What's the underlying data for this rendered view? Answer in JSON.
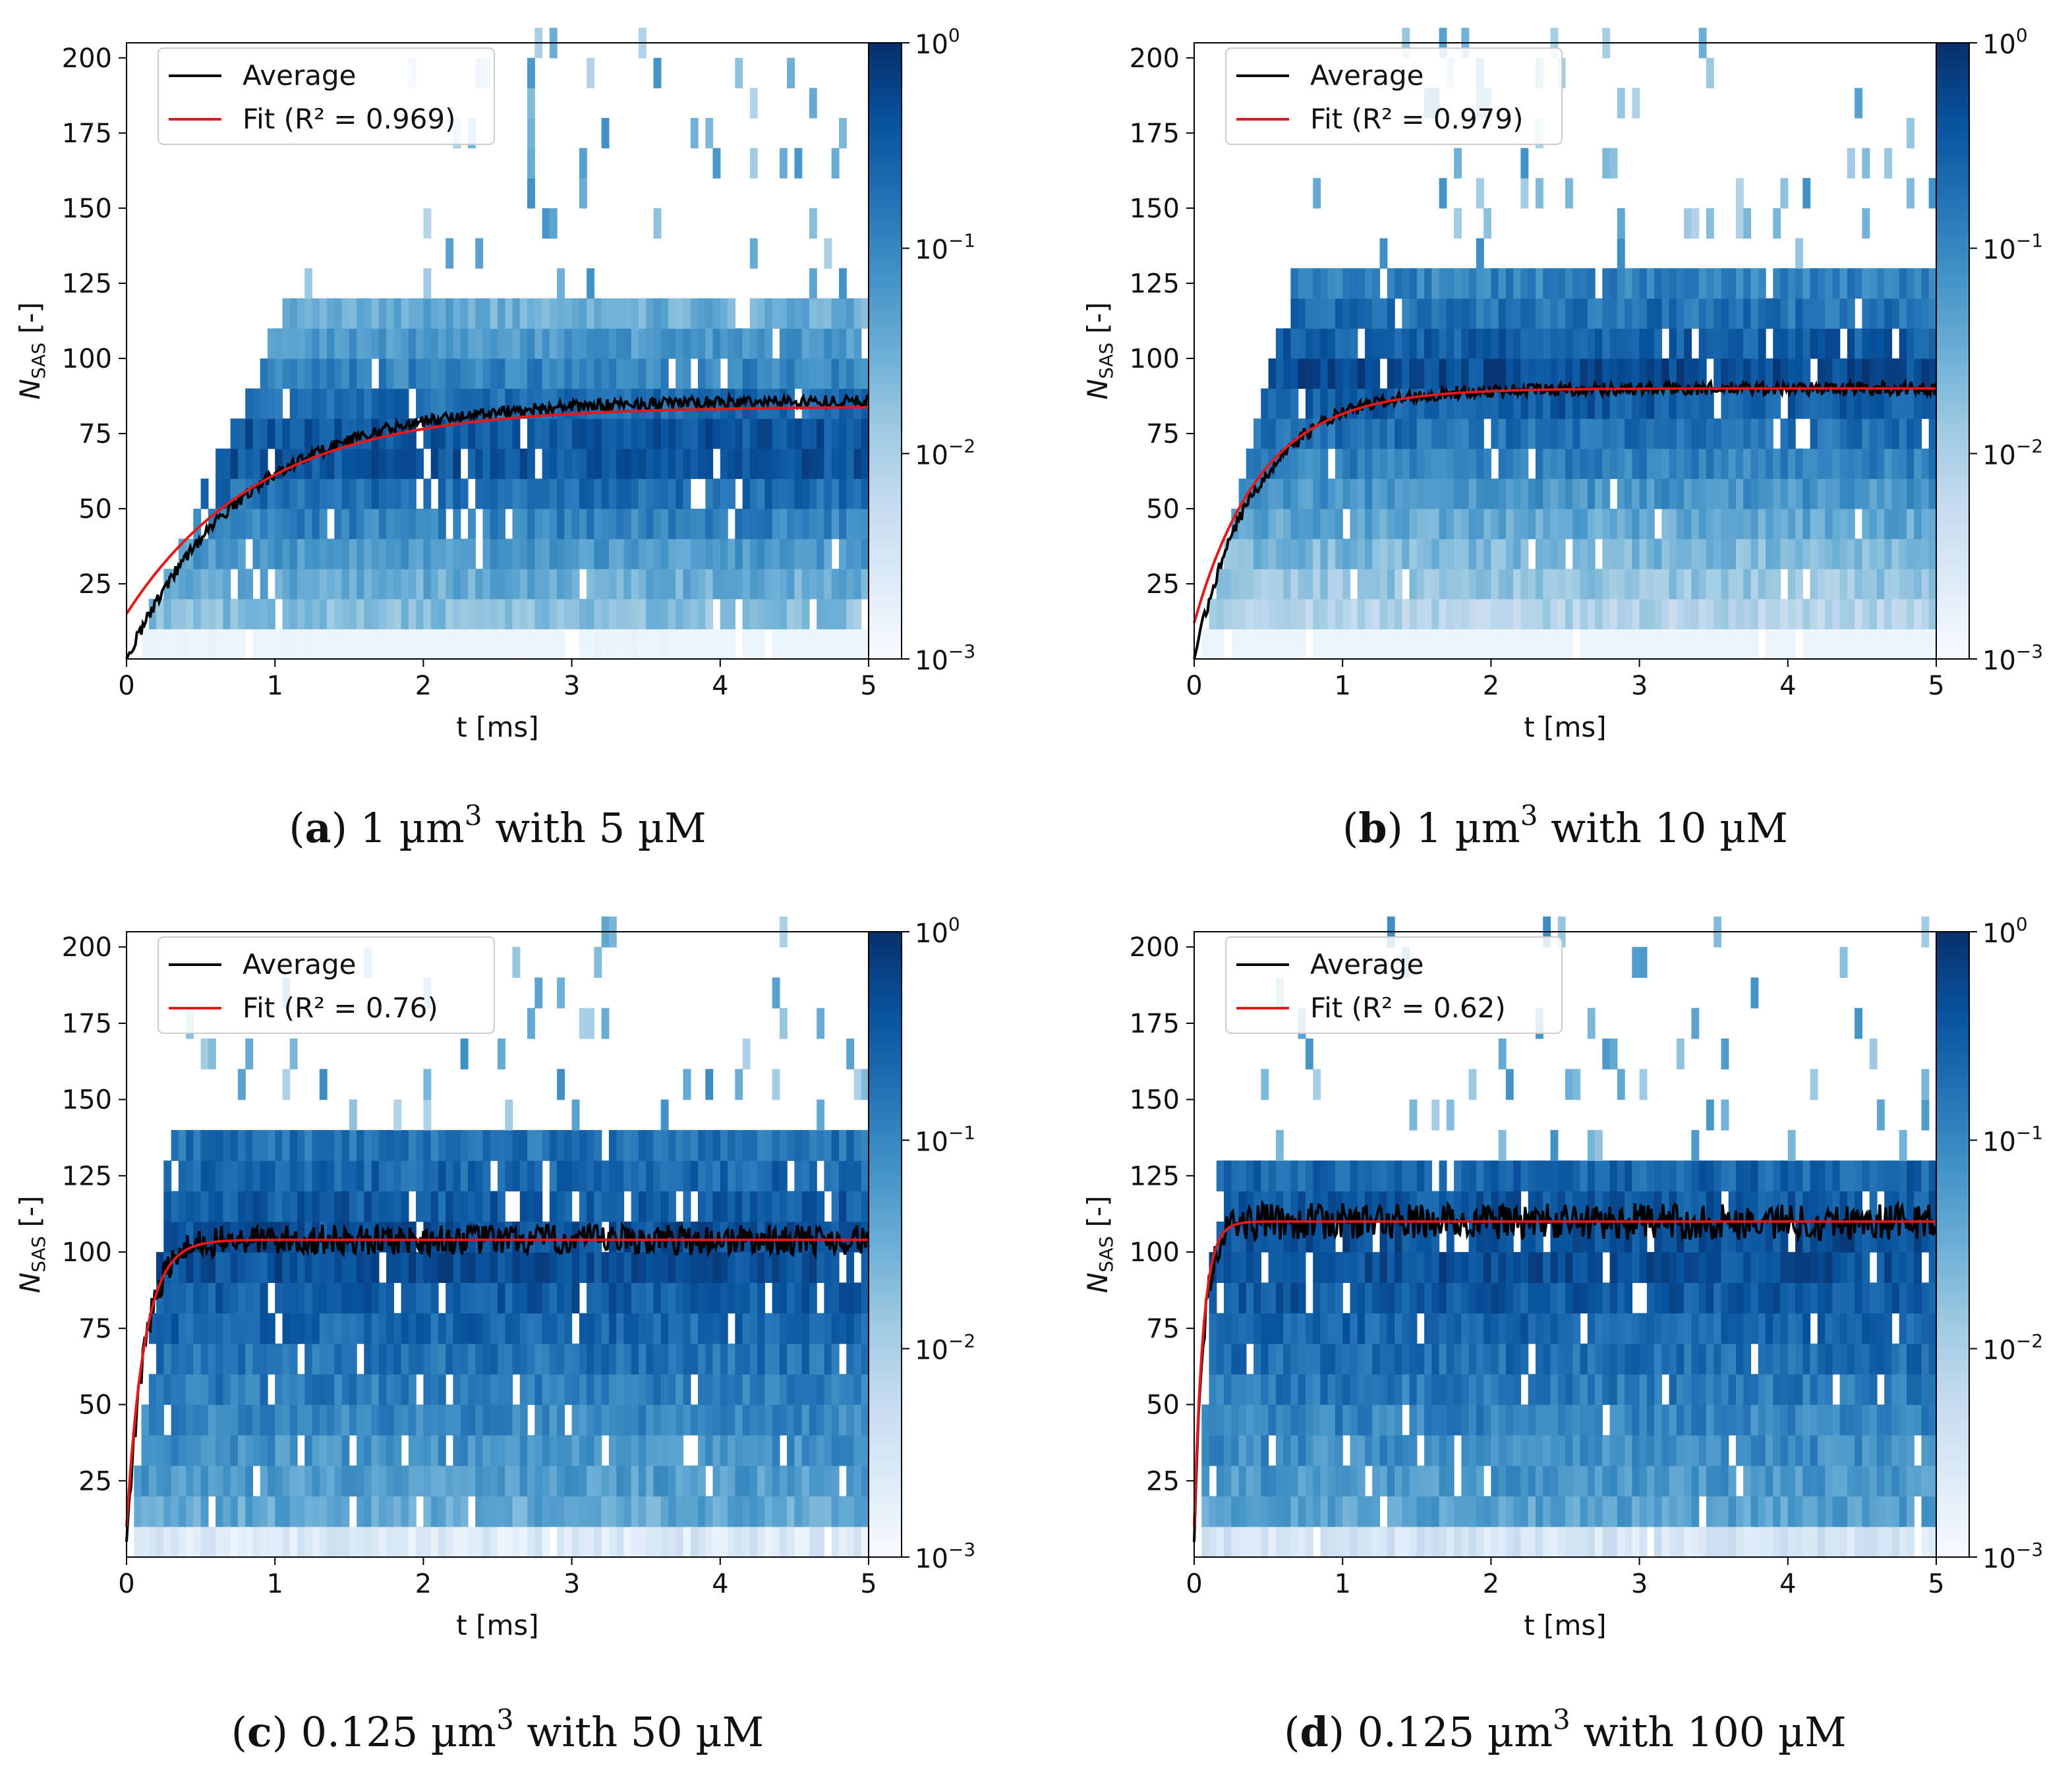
{
  "colors": {
    "average": "#000000",
    "fit": "#e31a1c",
    "cmap_low": "#f7fbff",
    "cmap_high": "#08306b"
  },
  "colorbar": {
    "ticks": [
      {
        "base": "10",
        "exp": "0",
        "value": 1
      },
      {
        "base": "10",
        "exp": "−1",
        "value": 0.1
      },
      {
        "base": "10",
        "exp": "−2",
        "value": 0.01
      },
      {
        "base": "10",
        "exp": "−3",
        "value": 0.001
      }
    ],
    "scale": "log",
    "range": [
      0.001,
      1
    ]
  },
  "chart_data": [
    {
      "type": "heatmap",
      "caption": {
        "letter": "a",
        "text": "1 µm",
        "sup": "3",
        "rest": " with 5 µM"
      },
      "xlabel": "t [ms]",
      "ylabel": {
        "main": "N",
        "sub": "SAS",
        "tail": " [-]"
      },
      "xlim": [
        0,
        5
      ],
      "ylim": [
        0,
        205
      ],
      "xticks": [
        "0",
        "1",
        "2",
        "3",
        "4",
        "5"
      ],
      "yticks": [
        "25",
        "50",
        "75",
        "100",
        "125",
        "150",
        "175",
        "200"
      ],
      "legend": {
        "position": "top-left",
        "entries": [
          "Average",
          "Fit (R² = 0.969)"
        ]
      },
      "fit": {
        "plateau": 84,
        "start": 15,
        "tau": 0.9
      },
      "average": {
        "plateau": 86,
        "start": 0,
        "tau": 0.8,
        "noise": 2
      },
      "heatmap": {
        "band_low": 5,
        "band_high": 115,
        "peak": 70,
        "spread": 0.6,
        "sparse_until": 205,
        "onset_step": 0.09
      }
    },
    {
      "type": "heatmap",
      "caption": {
        "letter": "b",
        "text": "1 µm",
        "sup": "3",
        "rest": " with 10 µM"
      },
      "xlabel": "t [ms]",
      "ylabel": {
        "main": "N",
        "sub": "SAS",
        "tail": " [-]"
      },
      "xlim": [
        0,
        5
      ],
      "ylim": [
        0,
        205
      ],
      "xticks": [
        "0",
        "1",
        "2",
        "3",
        "4",
        "5"
      ],
      "yticks": [
        "25",
        "50",
        "75",
        "100",
        "125",
        "150",
        "175",
        "200"
      ],
      "legend": {
        "position": "top-left",
        "entries": [
          "Average",
          "Fit (R² = 0.979)"
        ]
      },
      "fit": {
        "plateau": 90,
        "start": 12,
        "tau": 0.45
      },
      "average": {
        "plateau": 90,
        "start": 0,
        "tau": 0.42,
        "noise": 2.2
      },
      "heatmap": {
        "band_low": 5,
        "band_high": 125,
        "peak": 95,
        "spread": 0.55,
        "sparse_until": 205,
        "onset_step": 0.05
      }
    },
    {
      "type": "heatmap",
      "caption": {
        "letter": "c",
        "text": "0.125 µm",
        "sup": "3",
        "rest": " with 50 µM"
      },
      "xlabel": "t [ms]",
      "ylabel": {
        "main": "N",
        "sub": "SAS",
        "tail": " [-]"
      },
      "xlim": [
        0,
        5
      ],
      "ylim": [
        0,
        205
      ],
      "xticks": [
        "0",
        "1",
        "2",
        "3",
        "4",
        "5"
      ],
      "yticks": [
        "25",
        "50",
        "75",
        "100",
        "125",
        "150",
        "175",
        "200"
      ],
      "legend": {
        "position": "top-left",
        "entries": [
          "Average",
          "Fit (R² = 0.76)"
        ]
      },
      "fit": {
        "plateau": 104,
        "start": 10,
        "tau": 0.12
      },
      "average": {
        "plateau": 104,
        "start": 5,
        "tau": 0.12,
        "noise": 5
      },
      "heatmap": {
        "band_low": 5,
        "band_high": 135,
        "peak": 100,
        "spread": 0.35,
        "sparse_until": 205,
        "onset_step": 0.02
      }
    },
    {
      "type": "heatmap",
      "caption": {
        "letter": "d",
        "text": "0.125 µm",
        "sup": "3",
        "rest": " with 100 µM"
      },
      "xlabel": "t [ms]",
      "ylabel": {
        "main": "N",
        "sub": "SAS",
        "tail": " [-]"
      },
      "xlim": [
        0,
        5
      ],
      "ylim": [
        0,
        205
      ],
      "xticks": [
        "0",
        "1",
        "2",
        "3",
        "4",
        "5"
      ],
      "yticks": [
        "25",
        "50",
        "75",
        "100",
        "125",
        "150",
        "175",
        "200"
      ],
      "legend": {
        "position": "top-left",
        "entries": [
          "Average",
          "Fit (R² = 0.62)"
        ]
      },
      "fit": {
        "plateau": 110,
        "start": 10,
        "tau": 0.06
      },
      "average": {
        "plateau": 110,
        "start": 5,
        "tau": 0.06,
        "noise": 6
      },
      "heatmap": {
        "band_low": 5,
        "band_high": 125,
        "peak": 100,
        "spread": 0.3,
        "sparse_until": 205,
        "onset_step": 0.01
      }
    }
  ]
}
